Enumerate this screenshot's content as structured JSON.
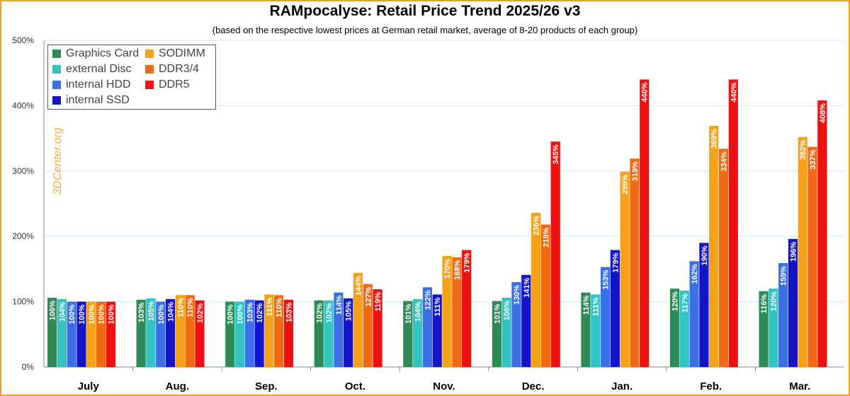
{
  "chart_data": {
    "type": "bar",
    "title": "RAMpocalyse: Retail Price Trend 2025/26 v3",
    "subtitle": "(based on the respective lowest prices at German retail market, average of 8-20 products of each group)",
    "watermark": "3DCenter.org",
    "categories": [
      "July",
      "Aug.",
      "Sep.",
      "Oct.",
      "Nov.",
      "Dec.",
      "Jan.",
      "Feb.",
      "Mar."
    ],
    "ylim": [
      0,
      500
    ],
    "yticks": [
      "0%",
      "100%",
      "200%",
      "300%",
      "400%",
      "500%"
    ],
    "grid": true,
    "legend_position": "top-left",
    "series": [
      {
        "name": "Graphics Card",
        "color": "#2e8b57",
        "values": [
          106,
          103,
          100,
          102,
          101,
          101,
          114,
          120,
          116
        ],
        "labels": [
          "106%",
          "103%",
          "100%",
          "102%",
          "101%",
          "101%",
          "114%",
          "120%",
          "116%"
        ]
      },
      {
        "name": "external Disc",
        "color": "#33c3c3",
        "values": [
          104,
          105,
          100,
          102,
          104,
          106,
          111,
          117,
          120
        ],
        "labels": [
          "104%",
          "105%",
          "100%",
          "102%",
          "104%",
          "106%",
          "111%",
          "117%",
          "120%"
        ]
      },
      {
        "name": "internal HDD",
        "color": "#3a6fe8",
        "values": [
          100,
          100,
          103,
          114,
          122,
          130,
          153,
          162,
          159
        ],
        "labels": [
          "100%",
          "100%",
          "103%",
          "114%",
          "122%",
          "130%",
          "153%",
          "162%",
          "159%"
        ]
      },
      {
        "name": "internal SSD",
        "color": "#1414c8",
        "values": [
          100,
          104,
          102,
          105,
          111,
          141,
          179,
          190,
          196
        ],
        "labels": [
          "100%",
          "104%",
          "102%",
          "105%",
          "111%",
          "141%",
          "179%",
          "190%",
          "196%"
        ]
      },
      {
        "name": "SODIMM",
        "color": "#f5a21a",
        "values": [
          100,
          110,
          111,
          144,
          170,
          236,
          299,
          369,
          352
        ],
        "labels": [
          "100%",
          "110%",
          "111%",
          "144%",
          "170%",
          "236%",
          "299%",
          "369%",
          "352%"
        ]
      },
      {
        "name": "DDR3/4",
        "color": "#f06a14",
        "values": [
          100,
          110,
          110,
          127,
          168,
          218,
          319,
          334,
          337
        ],
        "labels": [
          "100%",
          "110%",
          "110%",
          "127%",
          "168%",
          "218%",
          "319%",
          "334%",
          "337%"
        ]
      },
      {
        "name": "DDR5",
        "color": "#ee1111",
        "values": [
          100,
          102,
          103,
          119,
          179,
          345,
          440,
          440,
          408
        ],
        "labels": [
          "100%",
          "102%",
          "103%",
          "119%",
          "179%",
          "345%",
          "440%",
          "440%",
          "408%"
        ]
      }
    ]
  }
}
